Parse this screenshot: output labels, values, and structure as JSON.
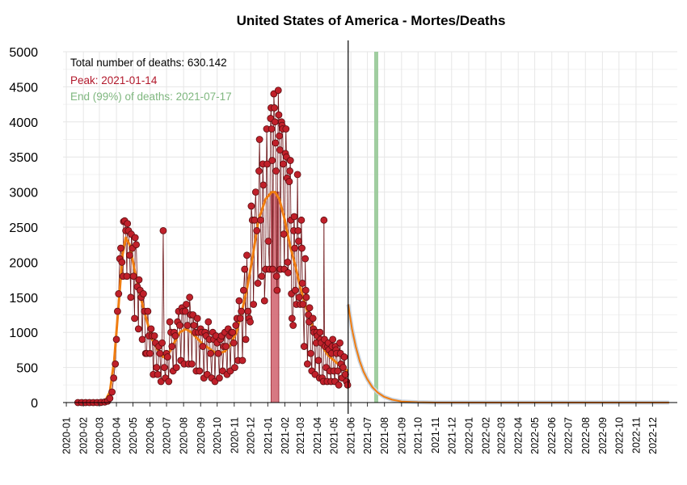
{
  "chart_data": {
    "type": "line",
    "title": "United States of America - Mortes/Deaths",
    "xlabel": "",
    "ylabel": "",
    "ylim": [
      0,
      5000
    ],
    "yticks": [
      0,
      500,
      1000,
      1500,
      2000,
      2500,
      3000,
      3500,
      4000,
      4500,
      5000
    ],
    "ytick_labels": [
      "0",
      "500",
      "1000",
      "1500",
      "2000",
      "2500",
      "3000",
      "3500",
      "4000",
      "4500",
      "5000"
    ],
    "x_range": [
      "2019-12-26",
      "2023-01-15"
    ],
    "x_tick_labels": [
      "2020-01",
      "2020-02",
      "2020-03",
      "2020-04",
      "2020-05",
      "2020-06",
      "2020-07",
      "2020-08",
      "2020-09",
      "2020-10",
      "2020-11",
      "2020-12",
      "2021-01",
      "2021-02",
      "2021-03",
      "2021-04",
      "2021-05",
      "2021-06",
      "2021-07",
      "2021-08",
      "2021-09",
      "2021-10",
      "2021-11",
      "2021-12",
      "2022-01",
      "2022-02",
      "2022-03",
      "2022-04",
      "2022-05",
      "2022-06",
      "2022-07",
      "2022-08",
      "2022-09",
      "2022-10",
      "2022-11",
      "2022-12"
    ],
    "grid": true,
    "annotations": {
      "total": "Total number of deaths: 630.142",
      "peak": "Peak: 2021-01-14",
      "end": "End (99%) of deaths: 2021-07-17"
    },
    "peak_bar": {
      "date": "2021-01-14",
      "width_days": 14,
      "value": 3000
    },
    "end_band": {
      "date": "2021-07-17"
    },
    "last_observed": "2021-05-27",
    "colors": {
      "points_fill": "#c0202a",
      "points_stroke": "#5a0d10",
      "smooth": "#f07d10",
      "projection": "#8f9eb0",
      "peak_bar": "#d36a75",
      "end_band": "#8fc48f",
      "annotation_total": "#000000",
      "annotation_peak": "#b2182b",
      "annotation_end": "#7fb77f"
    },
    "smooth_series": [
      [
        "2020-01-22",
        0
      ],
      [
        "2020-03-10",
        0
      ],
      [
        "2020-03-20",
        150
      ],
      [
        "2020-03-28",
        600
      ],
      [
        "2020-04-05",
        1400
      ],
      [
        "2020-04-12",
        2100
      ],
      [
        "2020-04-18",
        2350
      ],
      [
        "2020-04-25",
        2250
      ],
      [
        "2020-05-05",
        1850
      ],
      [
        "2020-05-15",
        1500
      ],
      [
        "2020-05-25",
        1200
      ],
      [
        "2020-06-05",
        900
      ],
      [
        "2020-06-15",
        750
      ],
      [
        "2020-06-25",
        650
      ],
      [
        "2020-07-05",
        700
      ],
      [
        "2020-07-15",
        850
      ],
      [
        "2020-07-25",
        1000
      ],
      [
        "2020-08-05",
        1050
      ],
      [
        "2020-08-15",
        1000
      ],
      [
        "2020-08-25",
        920
      ],
      [
        "2020-09-05",
        830
      ],
      [
        "2020-09-15",
        780
      ],
      [
        "2020-09-25",
        720
      ],
      [
        "2020-10-05",
        700
      ],
      [
        "2020-10-15",
        730
      ],
      [
        "2020-10-25",
        820
      ],
      [
        "2020-11-05",
        1000
      ],
      [
        "2020-11-15",
        1300
      ],
      [
        "2020-11-25",
        1650
      ],
      [
        "2020-12-05",
        2100
      ],
      [
        "2020-12-15",
        2600
      ],
      [
        "2020-12-28",
        2900
      ],
      [
        "2021-01-08",
        3000
      ],
      [
        "2021-01-14",
        3000
      ],
      [
        "2021-01-22",
        2900
      ],
      [
        "2021-02-01",
        2600
      ],
      [
        "2021-02-10",
        2250
      ],
      [
        "2021-02-20",
        1950
      ],
      [
        "2021-03-01",
        1650
      ],
      [
        "2021-03-10",
        1400
      ],
      [
        "2021-03-20",
        1150
      ],
      [
        "2021-04-01",
        900
      ],
      [
        "2021-04-10",
        800
      ],
      [
        "2021-04-20",
        680
      ],
      [
        "2021-05-01",
        600
      ],
      [
        "2021-05-10",
        540
      ],
      [
        "2021-05-20",
        480
      ],
      [
        "2021-05-27",
        450
      ]
    ],
    "projection_series": [
      [
        "2021-05-27",
        1400
      ],
      [
        "2021-06-03",
        1050
      ],
      [
        "2021-06-10",
        790
      ],
      [
        "2021-06-17",
        590
      ],
      [
        "2021-06-24",
        440
      ],
      [
        "2021-07-01",
        330
      ],
      [
        "2021-07-10",
        220
      ],
      [
        "2021-07-20",
        140
      ],
      [
        "2021-08-01",
        80
      ],
      [
        "2021-08-15",
        40
      ],
      [
        "2021-09-01",
        15
      ],
      [
        "2021-10-01",
        5
      ],
      [
        "2021-11-01",
        0
      ],
      [
        "2022-12-31",
        0
      ]
    ],
    "daily_points": [
      [
        "2020-01-22",
        0
      ],
      [
        "2020-01-29",
        0
      ],
      [
        "2020-02-05",
        0
      ],
      [
        "2020-02-12",
        0
      ],
      [
        "2020-02-19",
        0
      ],
      [
        "2020-02-26",
        0
      ],
      [
        "2020-03-04",
        2
      ],
      [
        "2020-03-11",
        8
      ],
      [
        "2020-03-16",
        20
      ],
      [
        "2020-03-20",
        60
      ],
      [
        "2020-03-24",
        150
      ],
      [
        "2020-03-27",
        350
      ],
      [
        "2020-03-30",
        550
      ],
      [
        "2020-04-01",
        900
      ],
      [
        "2020-04-03",
        1300
      ],
      [
        "2020-04-05",
        1550
      ],
      [
        "2020-04-07",
        2050
      ],
      [
        "2020-04-09",
        2200
      ],
      [
        "2020-04-11",
        2000
      ],
      [
        "2020-04-13",
        1800
      ],
      [
        "2020-04-14",
        2580
      ],
      [
        "2020-04-16",
        2590
      ],
      [
        "2020-04-18",
        2450
      ],
      [
        "2020-04-20",
        1800
      ],
      [
        "2020-04-21",
        2550
      ],
      [
        "2020-04-23",
        2450
      ],
      [
        "2020-04-25",
        2100
      ],
      [
        "2020-04-27",
        1500
      ],
      [
        "2020-04-28",
        2400
      ],
      [
        "2020-04-30",
        2200
      ],
      [
        "2020-05-02",
        1800
      ],
      [
        "2020-05-04",
        1200
      ],
      [
        "2020-05-05",
        2350
      ],
      [
        "2020-05-07",
        2250
      ],
      [
        "2020-05-09",
        1650
      ],
      [
        "2020-05-11",
        1050
      ],
      [
        "2020-05-12",
        1750
      ],
      [
        "2020-05-14",
        1600
      ],
      [
        "2020-05-16",
        1500
      ],
      [
        "2020-05-18",
        900
      ],
      [
        "2020-05-20",
        1550
      ],
      [
        "2020-05-22",
        1300
      ],
      [
        "2020-05-24",
        700
      ],
      [
        "2020-05-26",
        700
      ],
      [
        "2020-05-28",
        1300
      ],
      [
        "2020-05-30",
        950
      ],
      [
        "2020-06-01",
        700
      ],
      [
        "2020-06-03",
        1050
      ],
      [
        "2020-06-05",
        950
      ],
      [
        "2020-06-07",
        400
      ],
      [
        "2020-06-09",
        950
      ],
      [
        "2020-06-11",
        850
      ],
      [
        "2020-06-13",
        500
      ],
      [
        "2020-06-15",
        400
      ],
      [
        "2020-06-17",
        800
      ],
      [
        "2020-06-19",
        700
      ],
      [
        "2020-06-21",
        300
      ],
      [
        "2020-06-23",
        850
      ],
      [
        "2020-06-25",
        2450
      ],
      [
        "2020-06-27",
        500
      ],
      [
        "2020-06-29",
        350
      ],
      [
        "2020-07-01",
        700
      ],
      [
        "2020-07-03",
        650
      ],
      [
        "2020-07-05",
        300
      ],
      [
        "2020-07-07",
        1150
      ],
      [
        "2020-07-09",
        1000
      ],
      [
        "2020-07-11",
        800
      ],
      [
        "2020-07-13",
        450
      ],
      [
        "2020-07-15",
        1000
      ],
      [
        "2020-07-17",
        950
      ],
      [
        "2020-07-19",
        500
      ],
      [
        "2020-07-21",
        1150
      ],
      [
        "2020-07-23",
        1300
      ],
      [
        "2020-07-25",
        1100
      ],
      [
        "2020-07-27",
        600
      ],
      [
        "2020-07-29",
        1350
      ],
      [
        "2020-07-31",
        1300
      ],
      [
        "2020-08-02",
        550
      ],
      [
        "2020-08-04",
        1300
      ],
      [
        "2020-08-06",
        1400
      ],
      [
        "2020-08-08",
        1100
      ],
      [
        "2020-08-10",
        550
      ],
      [
        "2020-08-12",
        1500
      ],
      [
        "2020-08-14",
        1250
      ],
      [
        "2020-08-16",
        550
      ],
      [
        "2020-08-18",
        1250
      ],
      [
        "2020-08-20",
        1100
      ],
      [
        "2020-08-22",
        1000
      ],
      [
        "2020-08-24",
        450
      ],
      [
        "2020-08-26",
        1200
      ],
      [
        "2020-08-28",
        1000
      ],
      [
        "2020-08-30",
        450
      ],
      [
        "2020-09-01",
        1050
      ],
      [
        "2020-09-03",
        1000
      ],
      [
        "2020-09-05",
        800
      ],
      [
        "2020-09-07",
        350
      ],
      [
        "2020-09-09",
        1000
      ],
      [
        "2020-09-11",
        950
      ],
      [
        "2020-09-13",
        400
      ],
      [
        "2020-09-15",
        1150
      ],
      [
        "2020-09-17",
        900
      ],
      [
        "2020-09-19",
        700
      ],
      [
        "2020-09-21",
        350
      ],
      [
        "2020-09-23",
        1000
      ],
      [
        "2020-09-25",
        900
      ],
      [
        "2020-09-27",
        300
      ],
      [
        "2020-09-29",
        950
      ],
      [
        "2020-10-01",
        850
      ],
      [
        "2020-10-03",
        700
      ],
      [
        "2020-10-05",
        350
      ],
      [
        "2020-10-07",
        900
      ],
      [
        "2020-10-09",
        950
      ],
      [
        "2020-10-11",
        450
      ],
      [
        "2020-10-13",
        800
      ],
      [
        "2020-10-15",
        1000
      ],
      [
        "2020-10-17",
        800
      ],
      [
        "2020-10-19",
        400
      ],
      [
        "2020-10-21",
        1050
      ],
      [
        "2020-10-23",
        950
      ],
      [
        "2020-10-25",
        450
      ],
      [
        "2020-10-27",
        1000
      ],
      [
        "2020-10-29",
        1000
      ],
      [
        "2020-10-31",
        850
      ],
      [
        "2020-11-02",
        500
      ],
      [
        "2020-11-04",
        1100
      ],
      [
        "2020-11-06",
        1200
      ],
      [
        "2020-11-08",
        600
      ],
      [
        "2020-11-10",
        1450
      ],
      [
        "2020-11-12",
        1200
      ],
      [
        "2020-11-14",
        1300
      ],
      [
        "2020-11-16",
        600
      ],
      [
        "2020-11-18",
        1600
      ],
      [
        "2020-11-20",
        1900
      ],
      [
        "2020-11-22",
        900
      ],
      [
        "2020-11-24",
        2100
      ],
      [
        "2020-11-26",
        1300
      ],
      [
        "2020-11-28",
        1200
      ],
      [
        "2020-11-30",
        1150
      ],
      [
        "2020-12-02",
        2800
      ],
      [
        "2020-12-04",
        2600
      ],
      [
        "2020-12-06",
        1400
      ],
      [
        "2020-12-08",
        2600
      ],
      [
        "2020-12-10",
        3000
      ],
      [
        "2020-12-12",
        2450
      ],
      [
        "2020-12-14",
        1700
      ],
      [
        "2020-12-16",
        3300
      ],
      [
        "2020-12-17",
        3750
      ],
      [
        "2020-12-19",
        2600
      ],
      [
        "2020-12-21",
        1800
      ],
      [
        "2020-12-23",
        3400
      ],
      [
        "2020-12-24",
        3100
      ],
      [
        "2020-12-26",
        1450
      ],
      [
        "2020-12-28",
        1900
      ],
      [
        "2020-12-30",
        3900
      ],
      [
        "2020-12-31",
        3400
      ],
      [
        "2021-01-02",
        2300
      ],
      [
        "2021-01-04",
        1900
      ],
      [
        "2021-01-06",
        4050
      ],
      [
        "2021-01-07",
        4200
      ],
      [
        "2021-01-08",
        3900
      ],
      [
        "2021-01-09",
        3450
      ],
      [
        "2021-01-10",
        1900
      ],
      [
        "2021-01-12",
        4400
      ],
      [
        "2021-01-13",
        4200
      ],
      [
        "2021-01-14",
        4000
      ],
      [
        "2021-01-15",
        3700
      ],
      [
        "2021-01-16",
        3300
      ],
      [
        "2021-01-17",
        1800
      ],
      [
        "2021-01-18",
        1600
      ],
      [
        "2021-01-20",
        4450
      ],
      [
        "2021-01-21",
        4100
      ],
      [
        "2021-01-22",
        3800
      ],
      [
        "2021-01-23",
        3600
      ],
      [
        "2021-01-24",
        1900
      ],
      [
        "2021-01-26",
        4000
      ],
      [
        "2021-01-27",
        3950
      ],
      [
        "2021-01-28",
        3900
      ],
      [
        "2021-01-29",
        3400
      ],
      [
        "2021-01-30",
        2400
      ],
      [
        "2021-01-31",
        1900
      ],
      [
        "2021-02-02",
        3550
      ],
      [
        "2021-02-03",
        3900
      ],
      [
        "2021-02-04",
        3500
      ],
      [
        "2021-02-05",
        3200
      ],
      [
        "2021-02-06",
        2000
      ],
      [
        "2021-02-07",
        1850
      ],
      [
        "2021-02-09",
        3150
      ],
      [
        "2021-02-10",
        3300
      ],
      [
        "2021-02-11",
        3450
      ],
      [
        "2021-02-12",
        2600
      ],
      [
        "2021-02-13",
        1550
      ],
      [
        "2021-02-14",
        1200
      ],
      [
        "2021-02-16",
        1100
      ],
      [
        "2021-02-17",
        2450
      ],
      [
        "2021-02-18",
        2650
      ],
      [
        "2021-02-19",
        2200
      ],
      [
        "2021-02-20",
        1600
      ],
      [
        "2021-02-22",
        1400
      ],
      [
        "2021-02-24",
        3250
      ],
      [
        "2021-02-25",
        2450
      ],
      [
        "2021-02-26",
        2300
      ],
      [
        "2021-02-27",
        1500
      ],
      [
        "2021-03-01",
        1400
      ],
      [
        "2021-03-03",
        2600
      ],
      [
        "2021-03-04",
        2200
      ],
      [
        "2021-03-05",
        1700
      ],
      [
        "2021-03-06",
        1400
      ],
      [
        "2021-03-08",
        800
      ],
      [
        "2021-03-10",
        2050
      ],
      [
        "2021-03-11",
        1600
      ],
      [
        "2021-03-12",
        1500
      ],
      [
        "2021-03-14",
        550
      ],
      [
        "2021-03-16",
        1250
      ],
      [
        "2021-03-17",
        1150
      ],
      [
        "2021-03-18",
        1350
      ],
      [
        "2021-03-20",
        700
      ],
      [
        "2021-03-22",
        450
      ],
      [
        "2021-03-24",
        1200
      ],
      [
        "2021-03-25",
        1050
      ],
      [
        "2021-03-26",
        1000
      ],
      [
        "2021-03-28",
        400
      ],
      [
        "2021-03-30",
        850
      ],
      [
        "2021-03-31",
        1000
      ],
      [
        "2021-04-01",
        950
      ],
      [
        "2021-04-03",
        600
      ],
      [
        "2021-04-05",
        350
      ],
      [
        "2021-04-06",
        1000
      ],
      [
        "2021-04-07",
        900
      ],
      [
        "2021-04-08",
        850
      ],
      [
        "2021-04-10",
        350
      ],
      [
        "2021-04-12",
        300
      ],
      [
        "2021-04-13",
        2600
      ],
      [
        "2021-04-14",
        900
      ],
      [
        "2021-04-15",
        800
      ],
      [
        "2021-04-17",
        500
      ],
      [
        "2021-04-19",
        300
      ],
      [
        "2021-04-20",
        800
      ],
      [
        "2021-04-21",
        850
      ],
      [
        "2021-04-22",
        750
      ],
      [
        "2021-04-24",
        450
      ],
      [
        "2021-04-26",
        300
      ],
      [
        "2021-04-27",
        700
      ],
      [
        "2021-04-28",
        800
      ],
      [
        "2021-04-29",
        900
      ],
      [
        "2021-05-01",
        450
      ],
      [
        "2021-05-03",
        300
      ],
      [
        "2021-05-04",
        800
      ],
      [
        "2021-05-05",
        750
      ],
      [
        "2021-05-06",
        700
      ],
      [
        "2021-05-08",
        450
      ],
      [
        "2021-05-10",
        250
      ],
      [
        "2021-05-12",
        850
      ],
      [
        "2021-05-13",
        700
      ],
      [
        "2021-05-14",
        550
      ],
      [
        "2021-05-16",
        350
      ],
      [
        "2021-05-18",
        500
      ],
      [
        "2021-05-20",
        650
      ],
      [
        "2021-05-22",
        400
      ],
      [
        "2021-05-24",
        300
      ],
      [
        "2021-05-26",
        250
      ]
    ]
  }
}
